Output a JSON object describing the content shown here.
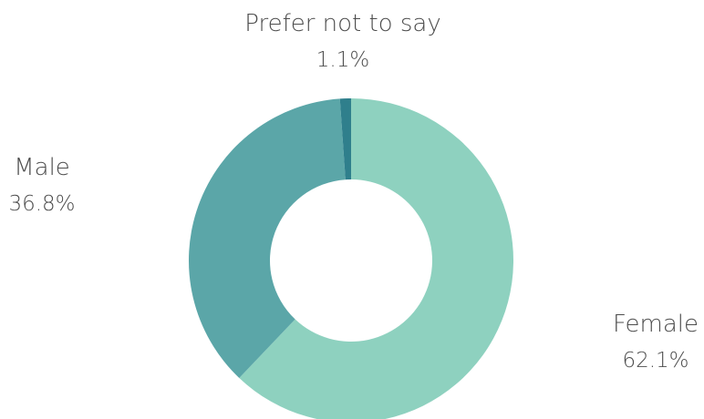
{
  "chart_data": {
    "type": "pie",
    "donut": true,
    "legend": "none",
    "slices": [
      {
        "label": "Female",
        "percent_label": "62.1%",
        "value": 62.1,
        "color": "#8ed1bf"
      },
      {
        "label": "Male",
        "percent_label": "36.8%",
        "value": 36.8,
        "color": "#5ba6a8"
      },
      {
        "label": "Prefer not to say",
        "percent_label": "1.1%",
        "value": 1.1,
        "color": "#2f7f8c"
      }
    ]
  }
}
